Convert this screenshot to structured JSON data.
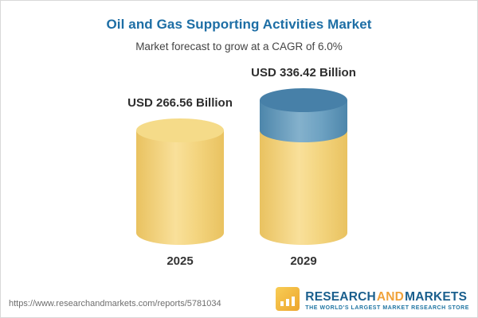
{
  "header": {
    "title": "Oil and Gas Supporting Activities Market",
    "subtitle": "Market forecast to grow at a CAGR of 6.0%"
  },
  "chart_data": {
    "type": "bar",
    "bar_style": "cylinder",
    "title": "Oil and Gas Supporting Activities Market",
    "subtitle": "Market forecast to grow at a CAGR of 6.0%",
    "cagr_percent": 6.0,
    "unit": "USD Billion",
    "categories": [
      "2025",
      "2029"
    ],
    "values": [
      266.56,
      336.42
    ],
    "value_labels": [
      "USD 266.56 Billion",
      "USD 336.42 Billion"
    ],
    "annotations": {
      "growth_segment": "portion of 2029 cylinder above 2025 level shown in blue"
    },
    "colors": {
      "base_cylinder": "#f3d47e",
      "growth_segment": "#6ea2c2",
      "title_text": "#1d6ea5"
    },
    "legend": "none",
    "grid": false
  },
  "footer": {
    "url": "https://www.researchandmarkets.com/reports/5781034",
    "logo": {
      "word_research": "RESEARCH",
      "word_and": "AND",
      "word_markets": "MARKETS",
      "tagline": "THE WORLD'S LARGEST MARKET RESEARCH STORE"
    }
  }
}
